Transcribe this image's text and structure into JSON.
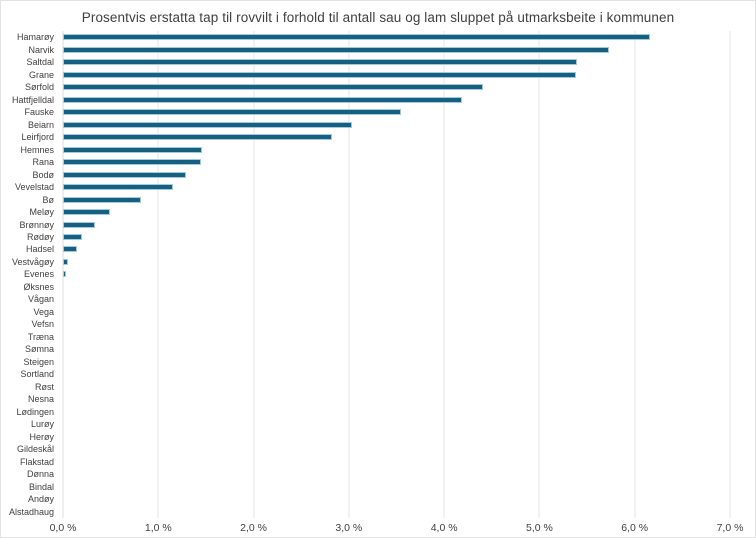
{
  "chart_data": {
    "type": "bar",
    "orientation": "horizontal",
    "title": "Prosentvis erstatta tap til rovvilt i forhold til antall sau og lam sluppet på utmarksbeite i kommunen",
    "categories": [
      "Hamarøy",
      "Narvik",
      "Saltdal",
      "Grane",
      "Sørfold",
      "Hattfjelldal",
      "Fauske",
      "Beiarn",
      "Leirfjord",
      "Hemnes",
      "Rana",
      "Bodø",
      "Vevelstad",
      "Bø",
      "Meløy",
      "Brønnøy",
      "Rødøy",
      "Hadsel",
      "Vestvågøy",
      "Evenes",
      "Øksnes",
      "Vågan",
      "Vega",
      "Vefsn",
      "Træna",
      "Sømna",
      "Steigen",
      "Sortland",
      "Røst",
      "Nesna",
      "Lødingen",
      "Lurøy",
      "Herøy",
      "Gildeskål",
      "Flakstad",
      "Dønna",
      "Bindal",
      "Andøy",
      "Alstadhaug"
    ],
    "values": [
      6.16,
      5.73,
      5.39,
      5.38,
      4.41,
      4.19,
      3.55,
      3.03,
      2.82,
      1.46,
      1.45,
      1.29,
      1.15,
      0.82,
      0.49,
      0.34,
      0.2,
      0.15,
      0.05,
      0.03,
      0,
      0,
      0,
      0,
      0,
      0,
      0,
      0,
      0,
      0,
      0,
      0,
      0,
      0,
      0,
      0,
      0,
      0,
      0
    ],
    "xlabel": "",
    "ylabel": "",
    "x_axis": {
      "min": 0,
      "max": 7,
      "tick_step": 1,
      "ticks": [
        "0,0 %",
        "1,0 %",
        "2,0 %",
        "3,0 %",
        "4,0 %",
        "5,0 %",
        "6,0 %",
        "7,0 %"
      ]
    },
    "grid": "vertical",
    "legend": "none",
    "colors": {
      "bar_fill": "#156082",
      "bar_border": "#a6c9d9",
      "gridline": "#e6e6e6",
      "axis_line": "#dcdcdc",
      "title_text": "#3f3f3f",
      "tick_text": "#404040"
    }
  }
}
